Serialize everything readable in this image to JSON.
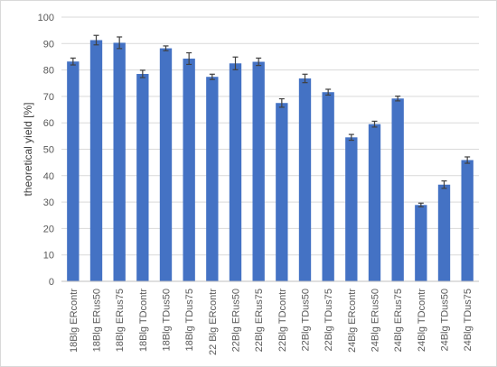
{
  "chart_data": {
    "type": "bar",
    "title": "",
    "xlabel": "",
    "ylabel": "theoretical yield [%]",
    "ylim": [
      0,
      100
    ],
    "yticks": [
      0,
      10,
      20,
      30,
      40,
      50,
      60,
      70,
      80,
      90,
      100
    ],
    "grid": true,
    "legend": "none",
    "bar_color": "#4472C4",
    "error_bar_color": "#404040",
    "categories": [
      "18Blg ERcontr",
      "18Blg ERus50",
      "18Blg ERus75",
      "18Blg TDcontr",
      "18Blg TDus50",
      "18Blg TDus75",
      "22 Blg ERcontr",
      "22Blg ERus50",
      "22Blg ERus75",
      "22Blg TDcontr",
      "22Blg TDus50",
      "22Blg TDus75",
      "24Blg ERcontr",
      "24Blg ERus50",
      "24Blg ERus75",
      "24Blg TDcontr",
      "24Blg TDus50",
      "24Blg TDus75"
    ],
    "values": [
      83.2,
      91.3,
      90.3,
      78.5,
      88.2,
      84.3,
      77.4,
      82.5,
      83.1,
      67.5,
      76.8,
      71.6,
      54.5,
      59.5,
      69.2,
      28.9,
      36.6,
      45.9
    ],
    "errors": [
      1.3,
      1.8,
      2.2,
      1.4,
      0.9,
      2.2,
      1.0,
      2.4,
      1.4,
      1.6,
      1.6,
      1.1,
      1.1,
      1.1,
      0.9,
      0.7,
      1.4,
      1.2
    ]
  }
}
